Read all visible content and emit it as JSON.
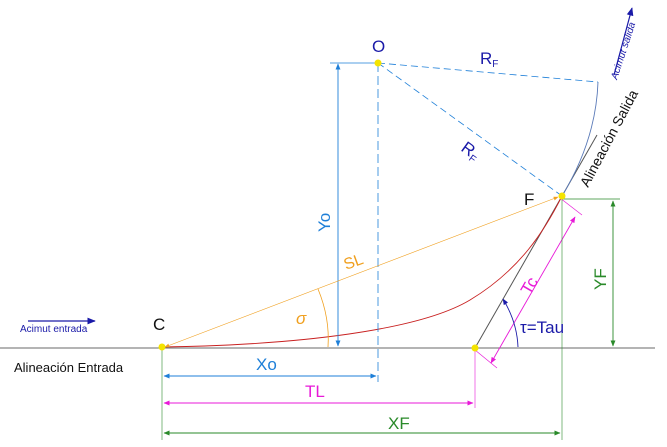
{
  "labels": {
    "O": "O",
    "RF_top": "R",
    "RF_top_sub": "F",
    "RF_diag": "R",
    "RF_diag_sub": "F",
    "F": "F",
    "C": "C",
    "Yo": "Yo",
    "SL": "SL",
    "sigma": "σ",
    "Tc": "Tc",
    "YF": "YF",
    "tau": "τ=Tau",
    "Xo": "Xo",
    "TL": "TL",
    "XF": "XF",
    "alineacion_entrada": "Alineación Entrada",
    "alineacion_salida": "Alineación Salida",
    "acimut_entrada": "Acimut entrada",
    "acimut_salida": "Acimut salida"
  },
  "colors": {
    "blue": "#1e7fd8",
    "dark_blue": "#1a1aa8",
    "magenta": "#e81ad8",
    "green": "#2a8a2a",
    "orange": "#f0a020",
    "red": "#c82020",
    "gray": "#6a6a6a",
    "yellow": "#f4e400"
  }
}
